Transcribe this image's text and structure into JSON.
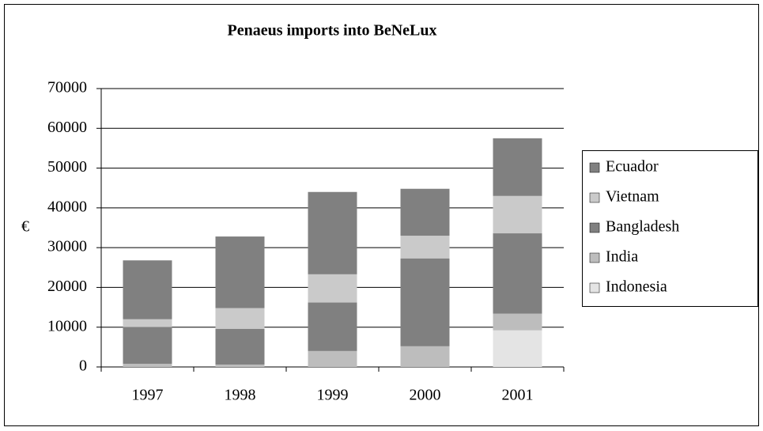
{
  "chart_data": {
    "type": "stacked_bar",
    "title": "Penaeus imports into BeNeLux",
    "y_label": "€",
    "categories": [
      "1997",
      "1998",
      "1999",
      "2000",
      "2001"
    ],
    "series": [
      {
        "name": "Indonesia",
        "color": "#e4e4e4",
        "values": [
          0,
          0,
          0,
          0,
          9200
        ]
      },
      {
        "name": "India",
        "color": "#bdbdbd",
        "values": [
          800,
          600,
          4000,
          5200,
          4200
        ]
      },
      {
        "name": "Bangladesh",
        "color": "#808080",
        "values": [
          9200,
          9000,
          12200,
          22100,
          20200
        ]
      },
      {
        "name": "Vietnam",
        "color": "#cacaca",
        "values": [
          2000,
          5200,
          7100,
          5700,
          9400
        ]
      },
      {
        "name": "Ecuador",
        "color": "#808080",
        "values": [
          14800,
          18000,
          20700,
          11800,
          14500
        ]
      }
    ],
    "ylim": [
      0,
      70000
    ],
    "yticks": [
      0,
      10000,
      20000,
      30000,
      40000,
      50000,
      60000,
      70000
    ],
    "grid": true
  }
}
